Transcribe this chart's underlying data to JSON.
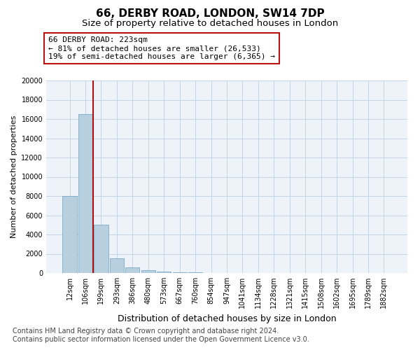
{
  "title1": "66, DERBY ROAD, LONDON, SW14 7DP",
  "title2": "Size of property relative to detached houses in London",
  "xlabel": "Distribution of detached houses by size in London",
  "ylabel": "Number of detached properties",
  "annotation_title": "66 DERBY ROAD: 223sqm",
  "annotation_line1": "← 81% of detached houses are smaller (26,533)",
  "annotation_line2": "19% of semi-detached houses are larger (6,365) →",
  "footer1": "Contains HM Land Registry data © Crown copyright and database right 2024.",
  "footer2": "Contains public sector information licensed under the Open Government Licence v3.0.",
  "bar_labels": [
    "12sqm",
    "106sqm",
    "199sqm",
    "293sqm",
    "386sqm",
    "480sqm",
    "573sqm",
    "667sqm",
    "760sqm",
    "854sqm",
    "947sqm",
    "1041sqm",
    "1134sqm",
    "1228sqm",
    "1321sqm",
    "1415sqm",
    "1508sqm",
    "1602sqm",
    "1695sqm",
    "1789sqm",
    "1882sqm"
  ],
  "bar_values": [
    8000,
    16500,
    5000,
    1500,
    600,
    300,
    150,
    100,
    50,
    0,
    0,
    0,
    0,
    0,
    0,
    0,
    0,
    0,
    0,
    0,
    0
  ],
  "property_line_x": 1.5,
  "ylim": [
    0,
    20000
  ],
  "bar_color": "#b8cfe0",
  "bar_edge_color": "#7aaac8",
  "vline_color": "#aa1111",
  "annotation_box_color": "#bb1111",
  "bg_color": "#eef3fa",
  "grid_color": "#c5d5e5",
  "title1_fontsize": 11,
  "title2_fontsize": 9.5,
  "xlabel_fontsize": 9,
  "ylabel_fontsize": 8,
  "tick_fontsize": 7,
  "annotation_fontsize": 8,
  "footer_fontsize": 7
}
